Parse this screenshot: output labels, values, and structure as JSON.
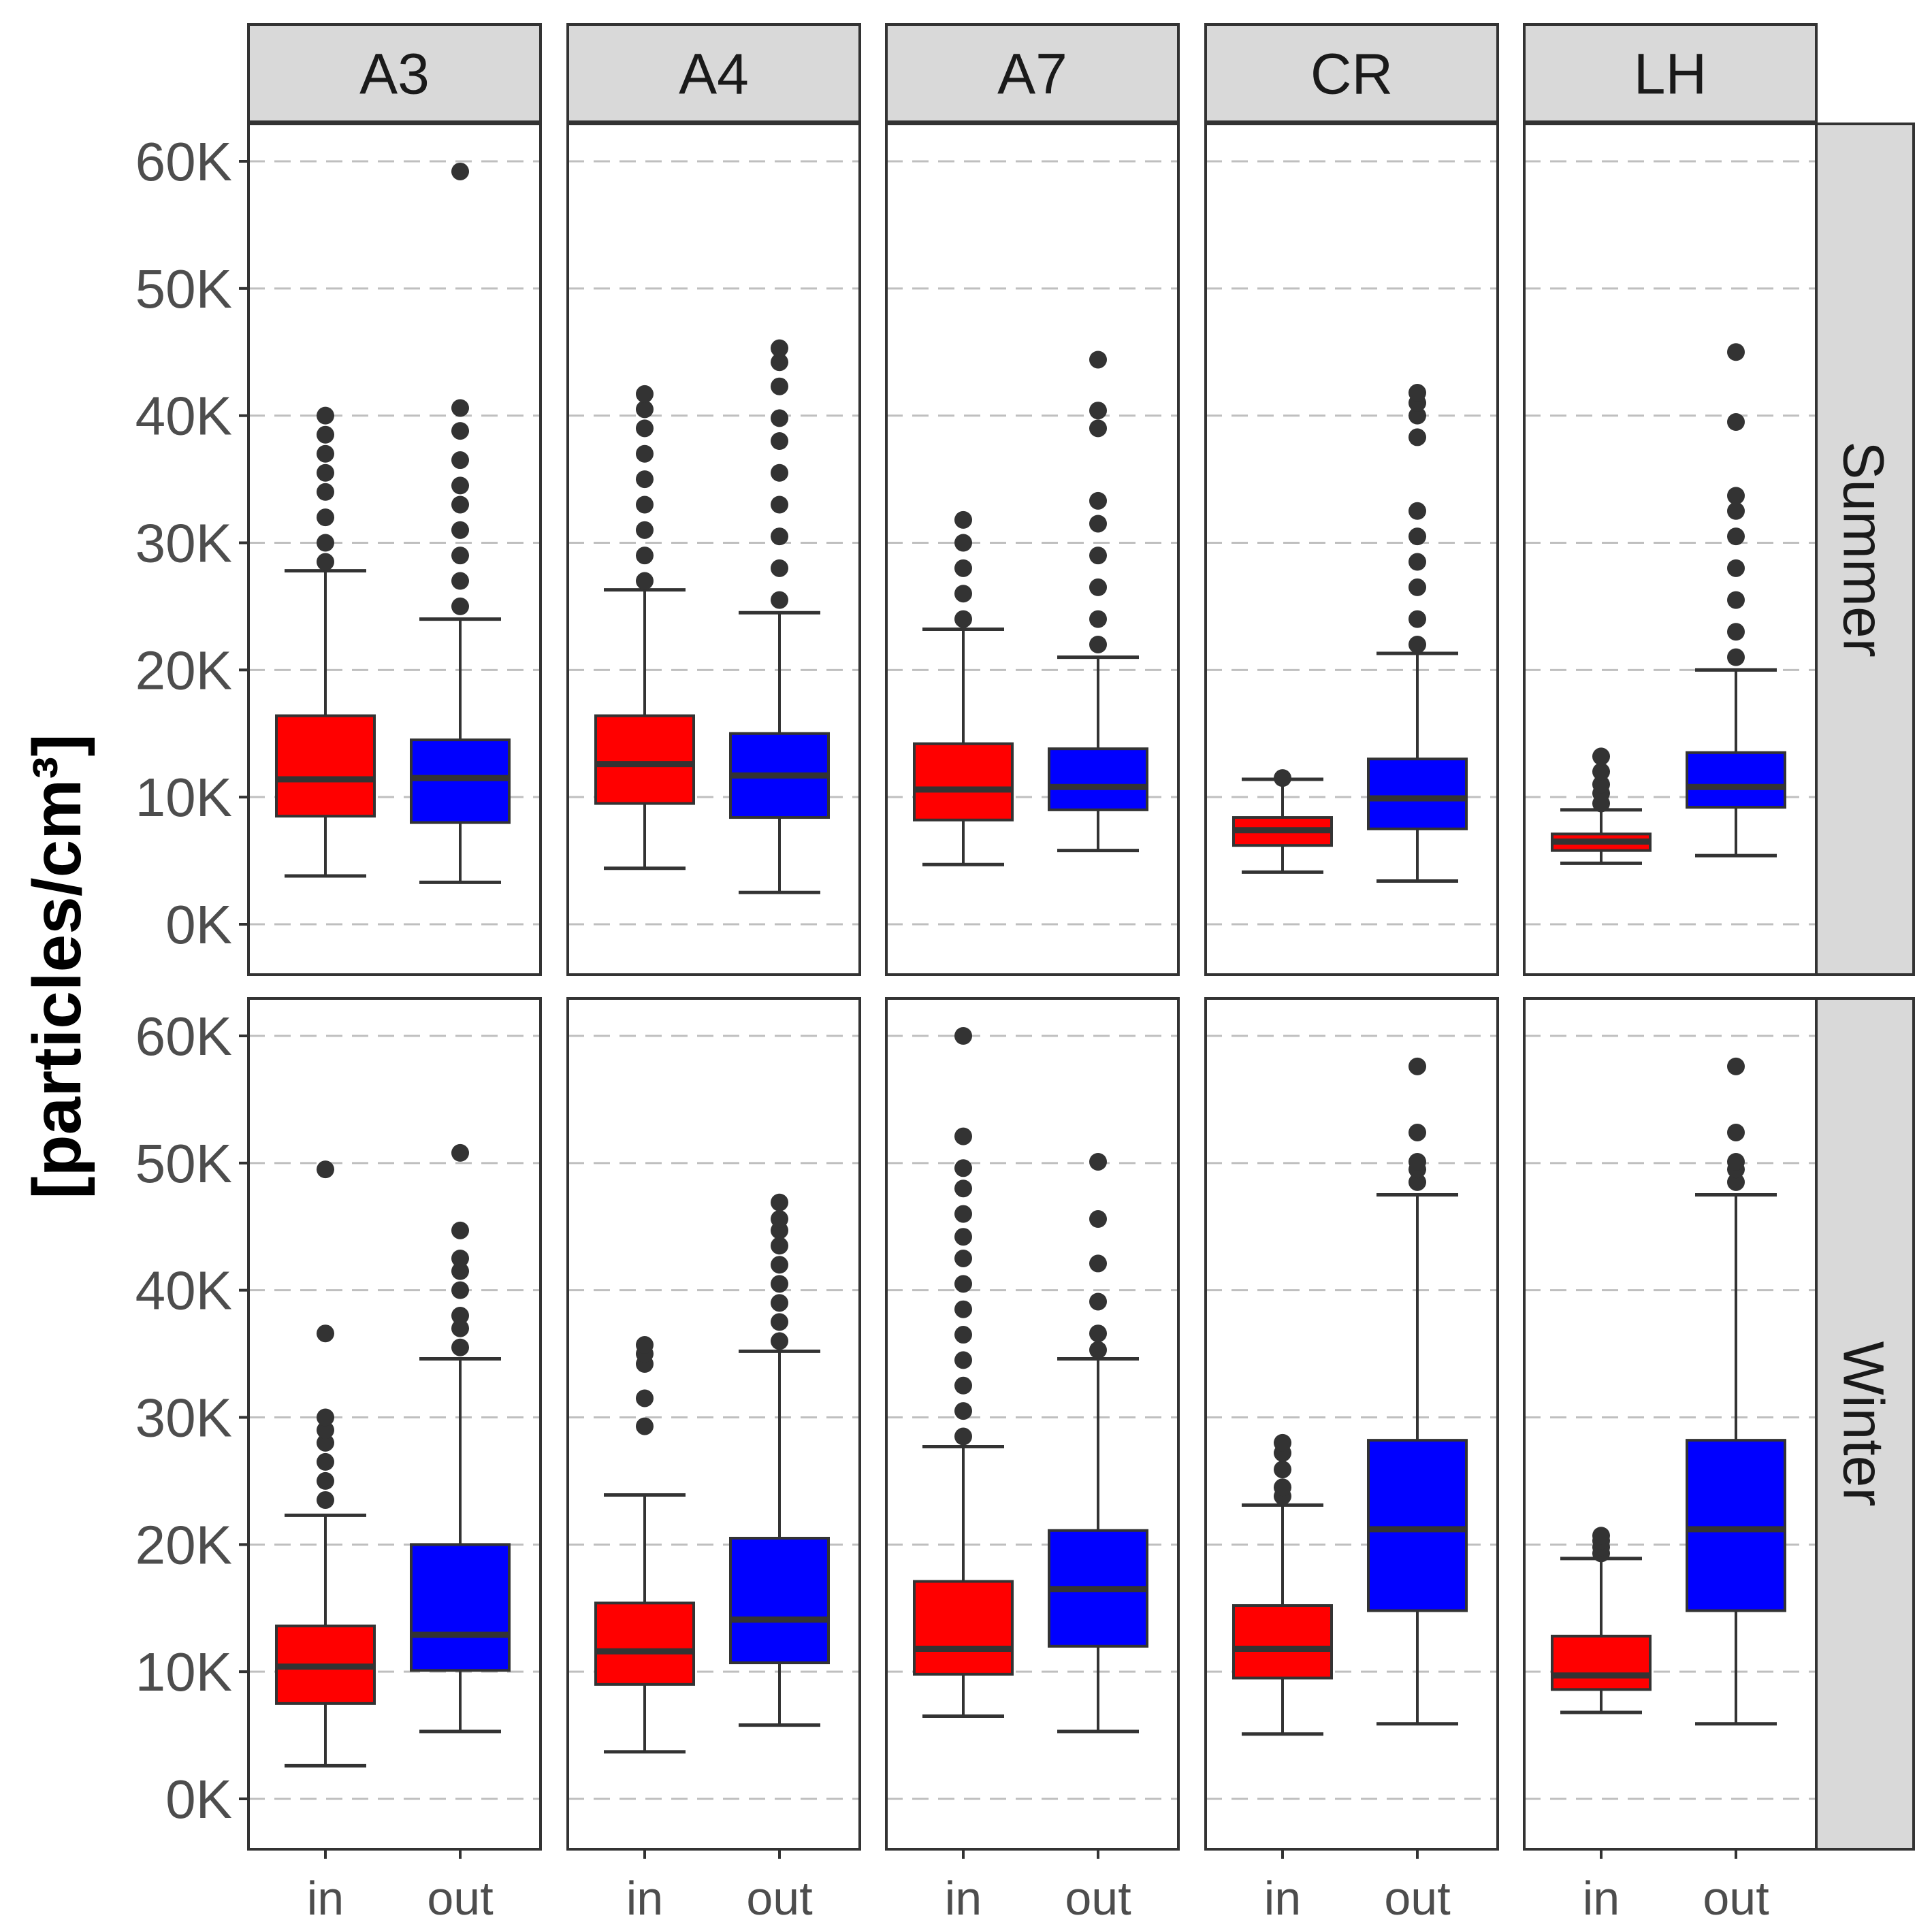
{
  "chart_data": {
    "type": "boxplot",
    "ylabel": "[particles/cm³]",
    "ylim": [
      -3000,
      63000
    ],
    "yticks": [
      0,
      10000,
      20000,
      30000,
      40000,
      50000,
      60000
    ],
    "ytick_labels": [
      "0K",
      "10K",
      "20K",
      "30K",
      "40K",
      "50K",
      "60K"
    ],
    "facet_columns": [
      "A3",
      "A4",
      "A7",
      "CR",
      "LH"
    ],
    "facet_rows": [
      "Summer",
      "Winter"
    ],
    "categories": [
      "in",
      "out"
    ],
    "colors": {
      "in": "#ff0000",
      "out": "#0000ff",
      "strip": "#d9d9d9",
      "grid": "#bfbfbf",
      "outline": "#333333"
    },
    "panels": [
      {
        "row": "Summer",
        "column": "A3",
        "boxes": [
          {
            "category": "in",
            "q1": 8500,
            "median": 11400,
            "q3": 16400,
            "whisker_low": 3800,
            "whisker_high": 27800,
            "outliers": [
              28500,
              30000,
              32000,
              34000,
              35500,
              37000,
              38500,
              40000
            ]
          },
          {
            "category": "out",
            "q1": 8000,
            "median": 11500,
            "q3": 14500,
            "whisker_low": 3300,
            "whisker_high": 24000,
            "outliers": [
              25000,
              27000,
              29000,
              31000,
              33000,
              34500,
              36500,
              38800,
              40600,
              59200
            ]
          }
        ]
      },
      {
        "row": "Summer",
        "column": "A4",
        "boxes": [
          {
            "category": "in",
            "q1": 9500,
            "median": 12600,
            "q3": 16400,
            "whisker_low": 4400,
            "whisker_high": 26300,
            "outliers": [
              27000,
              29000,
              31000,
              33000,
              35000,
              37000,
              39000,
              40500,
              41700
            ]
          },
          {
            "category": "out",
            "q1": 8400,
            "median": 11700,
            "q3": 15000,
            "whisker_low": 2500,
            "whisker_high": 24500,
            "outliers": [
              25500,
              28000,
              30500,
              33000,
              35500,
              38000,
              39800,
              42300,
              44200,
              45300
            ]
          }
        ]
      },
      {
        "row": "Summer",
        "column": "A7",
        "boxes": [
          {
            "category": "in",
            "q1": 8200,
            "median": 10600,
            "q3": 14200,
            "whisker_low": 4700,
            "whisker_high": 23200,
            "outliers": [
              24000,
              26000,
              28000,
              30000,
              31800
            ]
          },
          {
            "category": "out",
            "q1": 9000,
            "median": 10800,
            "q3": 13800,
            "whisker_low": 5800,
            "whisker_high": 21000,
            "outliers": [
              22000,
              24000,
              26500,
              29000,
              31500,
              33300,
              39000,
              40400,
              44400
            ]
          }
        ]
      },
      {
        "row": "Summer",
        "column": "CR",
        "boxes": [
          {
            "category": "in",
            "q1": 6200,
            "median": 7400,
            "q3": 8400,
            "whisker_low": 4100,
            "whisker_high": 11400,
            "outliers": [
              11500
            ]
          },
          {
            "category": "out",
            "q1": 7500,
            "median": 9900,
            "q3": 13000,
            "whisker_low": 3400,
            "whisker_high": 21300,
            "outliers": [
              22000,
              24000,
              26500,
              28500,
              30500,
              32500,
              38300,
              40000,
              41000,
              41800
            ]
          }
        ]
      },
      {
        "row": "Summer",
        "column": "LH",
        "boxes": [
          {
            "category": "in",
            "q1": 5800,
            "median": 6500,
            "q3": 7100,
            "whisker_low": 4800,
            "whisker_high": 9000,
            "outliers": [
              9500,
              10300,
              11000,
              12000,
              13200
            ]
          },
          {
            "category": "out",
            "q1": 9200,
            "median": 10800,
            "q3": 13500,
            "whisker_low": 5400,
            "whisker_high": 20000,
            "outliers": [
              21000,
              23000,
              25500,
              28000,
              30500,
              32500,
              33700,
              39500,
              45000
            ]
          }
        ]
      },
      {
        "row": "Winter",
        "column": "A3",
        "boxes": [
          {
            "category": "in",
            "q1": 7500,
            "median": 10400,
            "q3": 13600,
            "whisker_low": 2600,
            "whisker_high": 22300,
            "outliers": [
              23500,
              25000,
              26500,
              28000,
              29000,
              30000,
              36600,
              49500
            ]
          },
          {
            "category": "out",
            "q1": 10100,
            "median": 12900,
            "q3": 20000,
            "whisker_low": 5300,
            "whisker_high": 34600,
            "outliers": [
              35500,
              37000,
              38000,
              40000,
              41500,
              42500,
              44700,
              50800
            ]
          }
        ]
      },
      {
        "row": "Winter",
        "column": "A4",
        "boxes": [
          {
            "category": "in",
            "q1": 9000,
            "median": 11600,
            "q3": 15400,
            "whisker_low": 3700,
            "whisker_high": 23900,
            "outliers": [
              29300,
              31500,
              34200,
              35000,
              35700
            ]
          },
          {
            "category": "out",
            "q1": 10700,
            "median": 14100,
            "q3": 20500,
            "whisker_low": 5800,
            "whisker_high": 35200,
            "outliers": [
              36000,
              37500,
              39000,
              40500,
              42000,
              43500,
              44700,
              45600,
              46900
            ]
          }
        ]
      },
      {
        "row": "Winter",
        "column": "A7",
        "boxes": [
          {
            "category": "in",
            "q1": 9800,
            "median": 11800,
            "q3": 17100,
            "whisker_low": 6500,
            "whisker_high": 27700,
            "outliers": [
              28500,
              30500,
              32500,
              34500,
              36500,
              38500,
              40500,
              42500,
              44200,
              46000,
              48000,
              49600,
              52100,
              60000
            ]
          },
          {
            "category": "out",
            "q1": 12000,
            "median": 16500,
            "q3": 21100,
            "whisker_low": 5300,
            "whisker_high": 34600,
            "outliers": [
              35300,
              36600,
              39100,
              42100,
              45600,
              50100
            ]
          }
        ]
      },
      {
        "row": "Winter",
        "column": "CR",
        "boxes": [
          {
            "category": "in",
            "q1": 9500,
            "median": 11800,
            "q3": 15200,
            "whisker_low": 5100,
            "whisker_high": 23100,
            "outliers": [
              23800,
              24500,
              25900,
              27200,
              28000
            ]
          },
          {
            "category": "out",
            "q1": 14800,
            "median": 21200,
            "q3": 28200,
            "whisker_low": 5900,
            "whisker_high": 47500,
            "outliers": [
              48500,
              49500,
              50100,
              52400,
              57600
            ]
          }
        ]
      },
      {
        "row": "Winter",
        "column": "LH",
        "boxes": [
          {
            "category": "in",
            "q1": 8600,
            "median": 9700,
            "q3": 12800,
            "whisker_low": 6800,
            "whisker_high": 18900,
            "outliers": [
              19300,
              19800,
              20300,
              20700
            ]
          },
          {
            "category": "out",
            "q1": 14800,
            "median": 21200,
            "q3": 28200,
            "whisker_low": 5900,
            "whisker_high": 47500,
            "outliers": [
              48500,
              49500,
              50100,
              52400,
              57600
            ]
          }
        ]
      }
    ]
  }
}
